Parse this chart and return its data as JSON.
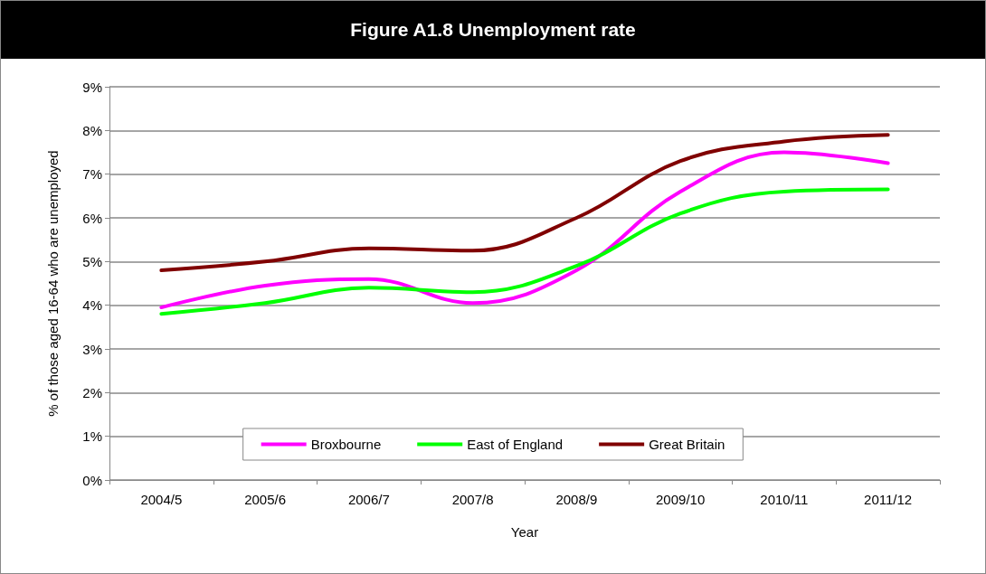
{
  "chart_data": {
    "type": "line",
    "title": "Figure A1.8 Unemployment rate",
    "xlabel": "Year",
    "ylabel": "% of those aged 16-64 who are unemployed",
    "categories": [
      "2004/5",
      "2005/6",
      "2006/7",
      "2007/8",
      "2008/9",
      "2009/10",
      "2010/11",
      "2011/12"
    ],
    "series": [
      {
        "name": "Broxbourne",
        "color": "#ff00ff",
        "values": [
          3.95,
          4.45,
          4.6,
          4.05,
          4.8,
          6.6,
          7.5,
          7.25
        ]
      },
      {
        "name": "East of England",
        "color": "#00ff00",
        "values": [
          3.8,
          4.05,
          4.4,
          4.3,
          4.9,
          6.1,
          6.6,
          6.65
        ]
      },
      {
        "name": "Great Britain",
        "color": "#800000",
        "values": [
          4.8,
          5.0,
          5.3,
          5.25,
          6.0,
          7.3,
          7.75,
          7.9
        ]
      }
    ],
    "ylim": [
      0,
      9
    ],
    "yticks": [
      {
        "value": 0,
        "label": "0%"
      },
      {
        "value": 1,
        "label": "1%"
      },
      {
        "value": 2,
        "label": "2%"
      },
      {
        "value": 3,
        "label": "3%"
      },
      {
        "value": 4,
        "label": "4%"
      },
      {
        "value": 5,
        "label": "5%"
      },
      {
        "value": 6,
        "label": "6%"
      },
      {
        "value": 7,
        "label": "7%"
      },
      {
        "value": 8,
        "label": "8%"
      },
      {
        "value": 9,
        "label": "9%"
      }
    ],
    "grid": "y",
    "legend": "bottom",
    "marker": "none",
    "line_style": "solid"
  }
}
